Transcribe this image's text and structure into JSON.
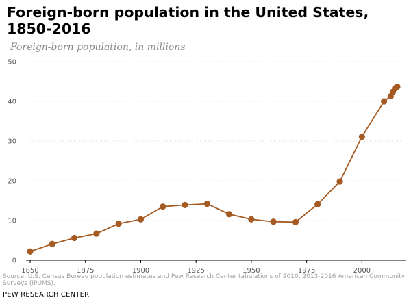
{
  "header": {
    "title": "Foreign-born population in the United States, 1850-2016",
    "subtitle": "Foreign-born population, in millions"
  },
  "footer": {
    "source": "Source: U.S. Census Bureau population estimates and Pew Research Center tabulations of 2010, 2013-2016 American Community Surveys (IPUMS).",
    "credit": "PEW RESEARCH CENTER"
  },
  "colors": {
    "series": "#A55A22",
    "grid": "#d9d9d9",
    "axis": "#000000"
  },
  "chart_data": {
    "type": "line",
    "title": "Foreign-born population in the United States, 1850-2016",
    "subtitle": "Foreign-born population, in millions",
    "xlabel": "",
    "ylabel": "",
    "xlim": [
      1850,
      2016
    ],
    "ylim": [
      0,
      50
    ],
    "x_ticks": [
      1850,
      1875,
      1900,
      1925,
      1950,
      1975,
      2000
    ],
    "y_ticks": [
      0,
      10,
      20,
      30,
      40,
      50
    ],
    "grid": true,
    "legend": "none",
    "series": [
      {
        "x": [
          1850,
          1860,
          1870,
          1880,
          1890,
          1900,
          1910,
          1920,
          1930,
          1940,
          1950,
          1960,
          1970,
          1980,
          1990,
          2000,
          2010,
          2013,
          2014,
          2015,
          2016
        ],
        "y": [
          2.2,
          4.1,
          5.6,
          6.7,
          9.2,
          10.3,
          13.5,
          13.9,
          14.2,
          11.6,
          10.3,
          9.7,
          9.6,
          14.1,
          19.8,
          31.1,
          40.0,
          41.3,
          42.4,
          43.3,
          43.7
        ]
      }
    ]
  }
}
